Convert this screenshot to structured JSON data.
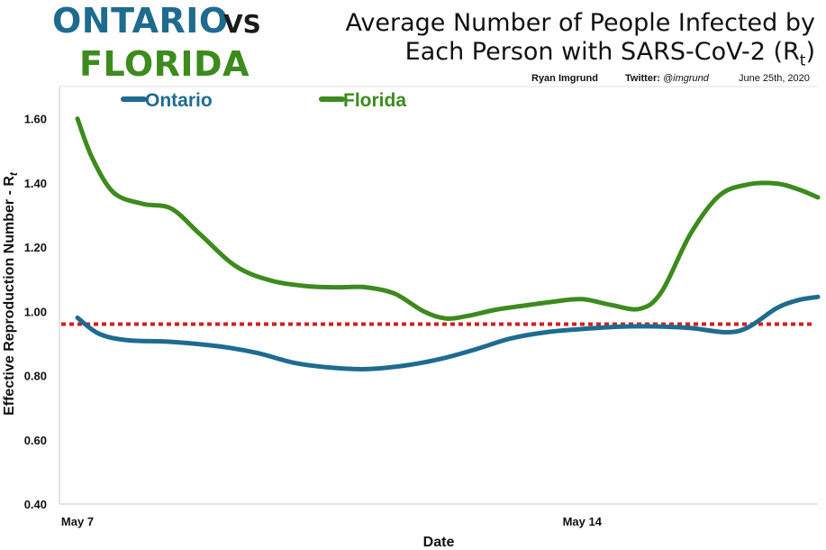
{
  "header": {
    "left_word1": "ONTARIO",
    "left_vs": "VS",
    "left_word2": "FLORIDA",
    "title_line1": "Average Number of People Infected by",
    "title_line2": "Each Person with SARS-CoV-2 (R",
    "title_sub": "t",
    "title_close": ")",
    "author": "Ryan Imgrund",
    "twitter_label": "Twitter: ",
    "twitter_handle": "@imgrund",
    "date": "June 25th, 2020"
  },
  "colors": {
    "ontario": "#1f6b8f",
    "florida": "#3d8a1e",
    "threshold": "#cc2222"
  },
  "chart_data": {
    "type": "line",
    "title": "Average Number of People Infected by Each Person with SARS-CoV-2 (Rt)",
    "xlabel": "Date",
    "ylabel_main": "Effective Reproduction Number - R",
    "ylabel_sub": "t",
    "ylim": [
      0.4,
      1.7
    ],
    "yticks": [
      "0.40",
      "0.60",
      "0.80",
      "1.00",
      "1.20",
      "1.40",
      "1.60"
    ],
    "ytick_values": [
      0.4,
      0.6,
      0.8,
      1.0,
      1.2,
      1.4,
      1.6
    ],
    "x_day_range": [
      7,
      17.27
    ],
    "xticks": [
      {
        "day": 7,
        "label": "May 7"
      },
      {
        "day": 14,
        "label": "May 14"
      }
    ],
    "threshold": 0.96,
    "legend_position": "top-left",
    "series": [
      {
        "name": "Ontario",
        "color": "#1f6b8f",
        "points": [
          [
            7.0,
            0.98
          ],
          [
            7.3,
            0.93
          ],
          [
            7.7,
            0.91
          ],
          [
            8.3,
            0.905
          ],
          [
            9.0,
            0.89
          ],
          [
            9.5,
            0.87
          ],
          [
            10.0,
            0.84
          ],
          [
            10.5,
            0.825
          ],
          [
            11.0,
            0.82
          ],
          [
            11.5,
            0.83
          ],
          [
            12.0,
            0.85
          ],
          [
            12.5,
            0.88
          ],
          [
            13.0,
            0.915
          ],
          [
            13.5,
            0.935
          ],
          [
            14.0,
            0.945
          ],
          [
            14.5,
            0.952
          ],
          [
            15.0,
            0.953
          ],
          [
            15.5,
            0.948
          ],
          [
            16.0,
            0.935
          ],
          [
            16.3,
            0.95
          ],
          [
            16.7,
            1.01
          ],
          [
            17.0,
            1.035
          ],
          [
            17.27,
            1.045
          ]
        ]
      },
      {
        "name": "Florida",
        "color": "#3d8a1e",
        "points": [
          [
            7.0,
            1.6
          ],
          [
            7.2,
            1.48
          ],
          [
            7.5,
            1.37
          ],
          [
            7.9,
            1.335
          ],
          [
            8.3,
            1.32
          ],
          [
            8.7,
            1.24
          ],
          [
            9.2,
            1.14
          ],
          [
            9.7,
            1.095
          ],
          [
            10.2,
            1.078
          ],
          [
            10.6,
            1.075
          ],
          [
            11.0,
            1.075
          ],
          [
            11.4,
            1.055
          ],
          [
            11.8,
            1.0
          ],
          [
            12.1,
            0.978
          ],
          [
            12.4,
            0.985
          ],
          [
            12.8,
            1.005
          ],
          [
            13.2,
            1.018
          ],
          [
            13.6,
            1.03
          ],
          [
            14.0,
            1.038
          ],
          [
            14.4,
            1.02
          ],
          [
            14.8,
            1.008
          ],
          [
            15.1,
            1.06
          ],
          [
            15.5,
            1.24
          ],
          [
            15.9,
            1.36
          ],
          [
            16.3,
            1.395
          ],
          [
            16.7,
            1.398
          ],
          [
            17.0,
            1.38
          ],
          [
            17.27,
            1.355
          ]
        ]
      }
    ]
  }
}
